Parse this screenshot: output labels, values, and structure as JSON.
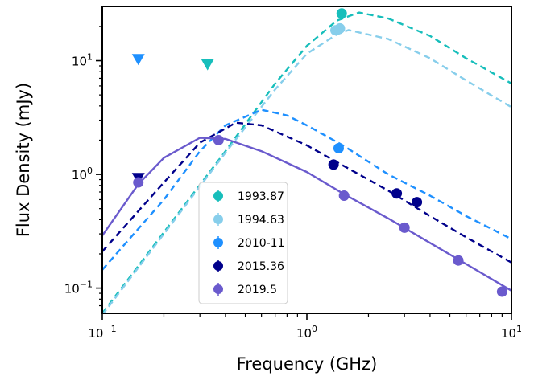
{
  "chart_data": {
    "type": "scatter",
    "xlabel": "Frequency (GHz)",
    "ylabel": "Flux Density (mJy)",
    "xscale": "log",
    "yscale": "log",
    "xlim": [
      0.1,
      10
    ],
    "ylim": [
      0.06,
      30
    ],
    "x_ticks": [
      {
        "value": 0.1,
        "base": "10",
        "exp": "−1"
      },
      {
        "value": 1,
        "base": "10",
        "exp": "0"
      },
      {
        "value": 10,
        "base": "10",
        "exp": "1"
      }
    ],
    "y_ticks": [
      {
        "value": 0.1,
        "base": "10",
        "exp": "−1"
      },
      {
        "value": 1,
        "base": "10",
        "exp": "0"
      },
      {
        "value": 10,
        "base": "10",
        "exp": "1"
      }
    ],
    "legend_position": "lower-center",
    "series": [
      {
        "name": "1993.87",
        "color": "#17bebb",
        "line": "dashed",
        "points": [
          {
            "x": 1.48,
            "y": 26
          }
        ],
        "upper_limits": [
          {
            "x": 0.327,
            "y": 9.2
          }
        ],
        "curve": [
          {
            "x": 0.1,
            "y": 0.06
          },
          {
            "x": 0.2,
            "y": 0.31
          },
          {
            "x": 0.4,
            "y": 1.6
          },
          {
            "x": 0.7,
            "y": 6.3
          },
          {
            "x": 1.0,
            "y": 13.5
          },
          {
            "x": 1.4,
            "y": 22.5
          },
          {
            "x": 1.8,
            "y": 26.5
          },
          {
            "x": 2.5,
            "y": 23.5
          },
          {
            "x": 4.0,
            "y": 16.5
          },
          {
            "x": 6.0,
            "y": 10.5
          },
          {
            "x": 10.0,
            "y": 6.3
          }
        ]
      },
      {
        "name": "1994.63",
        "color": "#87ceeb",
        "line": "dashed",
        "points": [
          {
            "x": 1.38,
            "y": 18.5
          },
          {
            "x": 1.45,
            "y": 19.2
          }
        ],
        "curve": [
          {
            "x": 0.1,
            "y": 0.058
          },
          {
            "x": 0.2,
            "y": 0.3
          },
          {
            "x": 0.4,
            "y": 1.55
          },
          {
            "x": 0.7,
            "y": 5.6
          },
          {
            "x": 1.0,
            "y": 11.5
          },
          {
            "x": 1.4,
            "y": 17.0
          },
          {
            "x": 1.6,
            "y": 18.6
          },
          {
            "x": 2.5,
            "y": 15.5
          },
          {
            "x": 4.0,
            "y": 10.5
          },
          {
            "x": 6.0,
            "y": 6.7
          },
          {
            "x": 10.0,
            "y": 3.9
          }
        ]
      },
      {
        "name": "2010-11",
        "color": "#1e90ff",
        "line": "dashed",
        "points": [
          {
            "x": 1.43,
            "y": 1.7
          }
        ],
        "upper_limits": [
          {
            "x": 0.15,
            "y": 10.2
          }
        ],
        "curve": [
          {
            "x": 0.1,
            "y": 0.145
          },
          {
            "x": 0.2,
            "y": 0.6
          },
          {
            "x": 0.3,
            "y": 1.6
          },
          {
            "x": 0.4,
            "y": 2.7
          },
          {
            "x": 0.6,
            "y": 3.7
          },
          {
            "x": 0.8,
            "y": 3.3
          },
          {
            "x": 1.0,
            "y": 2.7
          },
          {
            "x": 1.5,
            "y": 1.8
          },
          {
            "x": 2.5,
            "y": 1.0
          },
          {
            "x": 4.0,
            "y": 0.65
          },
          {
            "x": 6.0,
            "y": 0.43
          },
          {
            "x": 10.0,
            "y": 0.27
          }
        ]
      },
      {
        "name": "2015.36",
        "color": "#00008b",
        "line": "dashed",
        "points": [
          {
            "x": 1.35,
            "y": 1.22
          },
          {
            "x": 2.75,
            "y": 0.68
          },
          {
            "x": 3.45,
            "y": 0.57
          }
        ],
        "upper_limits": [
          {
            "x": 0.15,
            "y": 0.92
          }
        ],
        "curve": [
          {
            "x": 0.1,
            "y": 0.21
          },
          {
            "x": 0.2,
            "y": 0.85
          },
          {
            "x": 0.3,
            "y": 1.9
          },
          {
            "x": 0.45,
            "y": 2.85
          },
          {
            "x": 0.6,
            "y": 2.7
          },
          {
            "x": 1.0,
            "y": 1.8
          },
          {
            "x": 1.5,
            "y": 1.2
          },
          {
            "x": 2.5,
            "y": 0.72
          },
          {
            "x": 4.0,
            "y": 0.43
          },
          {
            "x": 6.0,
            "y": 0.28
          },
          {
            "x": 10.0,
            "y": 0.168
          }
        ]
      },
      {
        "name": "2019.5",
        "color": "#6a5acd",
        "line": "solid",
        "points": [
          {
            "x": 0.15,
            "y": 0.85
          },
          {
            "x": 0.37,
            "y": 2.0
          },
          {
            "x": 1.52,
            "y": 0.65
          },
          {
            "x": 3.0,
            "y": 0.34
          },
          {
            "x": 5.5,
            "y": 0.175
          },
          {
            "x": 9.0,
            "y": 0.093
          }
        ],
        "curve": [
          {
            "x": 0.1,
            "y": 0.29
          },
          {
            "x": 0.15,
            "y": 0.82
          },
          {
            "x": 0.2,
            "y": 1.4
          },
          {
            "x": 0.3,
            "y": 2.1
          },
          {
            "x": 0.4,
            "y": 2.05
          },
          {
            "x": 0.6,
            "y": 1.6
          },
          {
            "x": 1.0,
            "y": 1.05
          },
          {
            "x": 1.5,
            "y": 0.68
          },
          {
            "x": 2.5,
            "y": 0.41
          },
          {
            "x": 4.0,
            "y": 0.25
          },
          {
            "x": 6.0,
            "y": 0.163
          },
          {
            "x": 10.0,
            "y": 0.095
          }
        ]
      }
    ]
  }
}
